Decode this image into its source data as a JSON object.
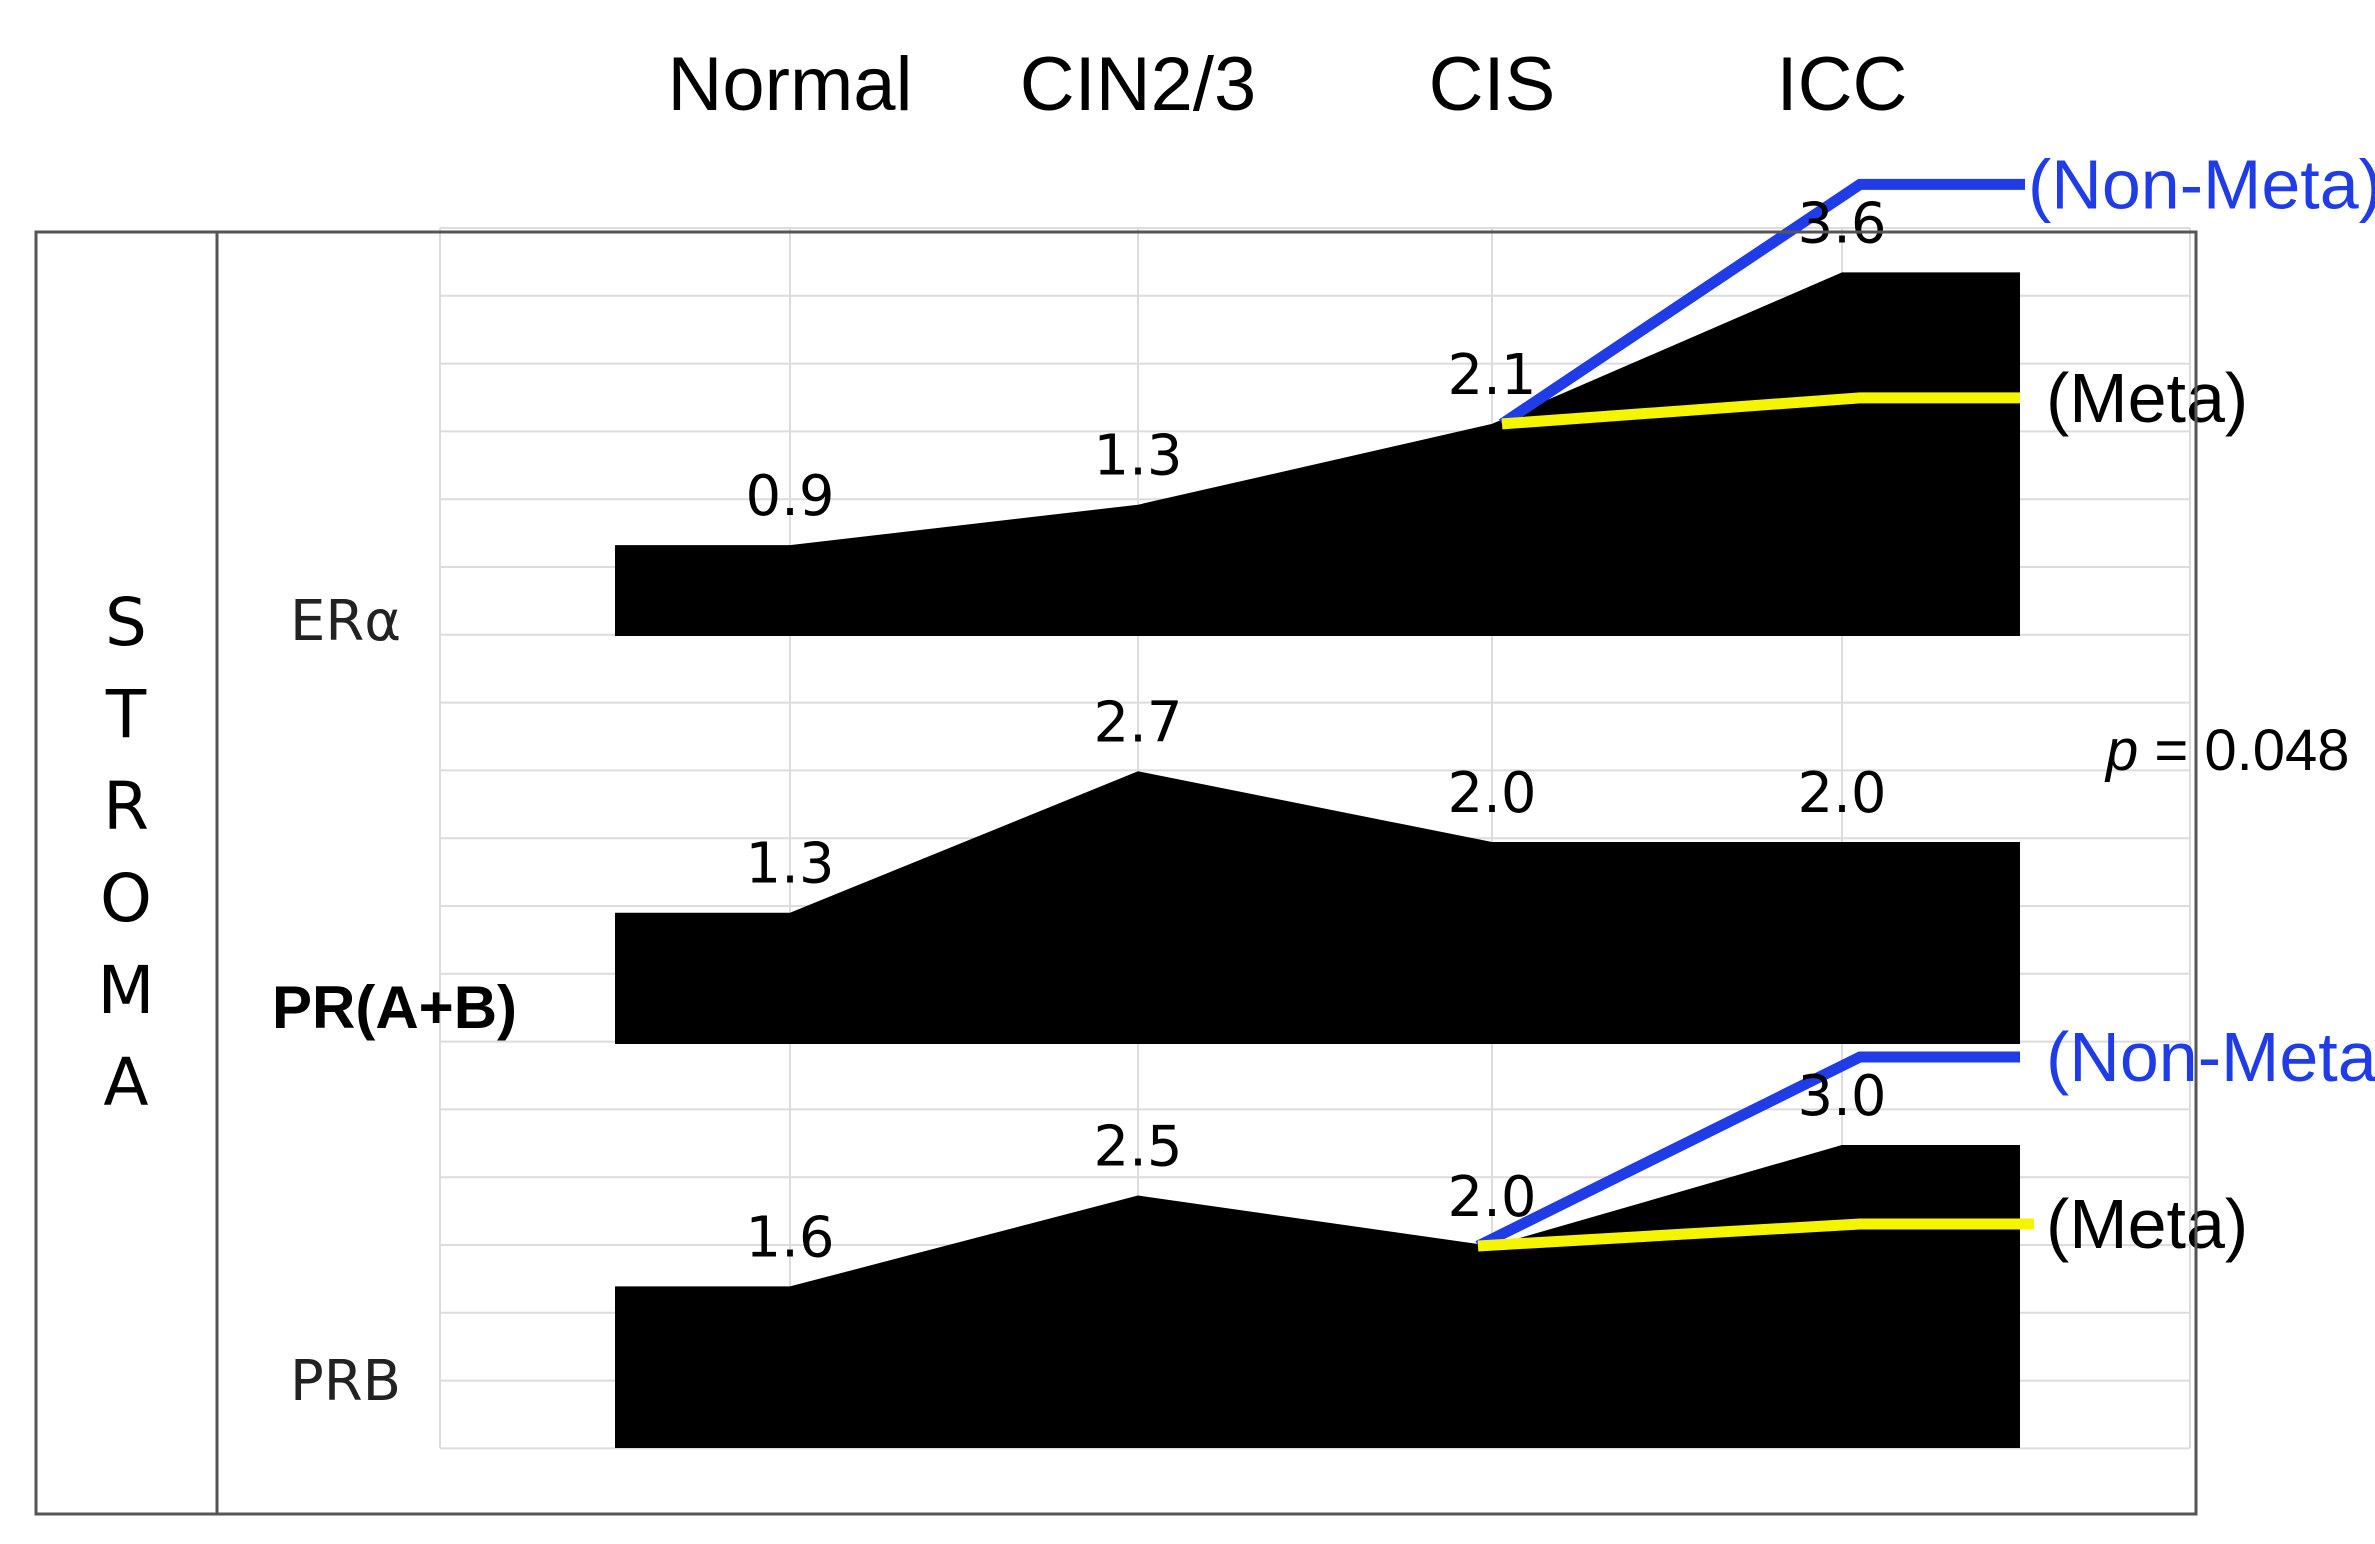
{
  "chart_data": {
    "type": "area",
    "title": "STROMA",
    "categories": [
      "Normal",
      "CIN2/3",
      "CIS",
      "ICC"
    ],
    "series": [
      {
        "name": "ERα",
        "values": [
          0.9,
          1.3,
          2.1,
          3.6
        ],
        "labels": [
          "0.9",
          "1.3",
          "2.1",
          "3.6"
        ],
        "branches": [
          {
            "name": "(Non-Meta)",
            "color": "#1f3ce6",
            "label_color": "#1f3ce6"
          },
          {
            "name": "(Meta)",
            "color": "#f5f500",
            "label_color": "#000000"
          }
        ]
      },
      {
        "name": "PR(A+B)",
        "values": [
          1.3,
          2.7,
          2.0,
          2.0
        ],
        "labels": [
          "1.3",
          "2.7",
          "2.0",
          "2.0"
        ],
        "bold": true,
        "branches": []
      },
      {
        "name": "PRB",
        "values": [
          1.6,
          2.5,
          2.0,
          3.0
        ],
        "labels": [
          "1.6",
          "2.5",
          "2.0",
          "3.0"
        ],
        "branches": [
          {
            "name": "(Non-Meta)",
            "color": "#1f3ce6",
            "label_color": "#1f3ce6"
          },
          {
            "name": "(Meta)",
            "color": "#f5f500",
            "label_color": "#000000"
          }
        ]
      }
    ],
    "annotations": [
      {
        "text": "p = 0.048",
        "p_symbol": "p",
        "rest": " = 0.048"
      }
    ],
    "fill_color": "#000000"
  }
}
